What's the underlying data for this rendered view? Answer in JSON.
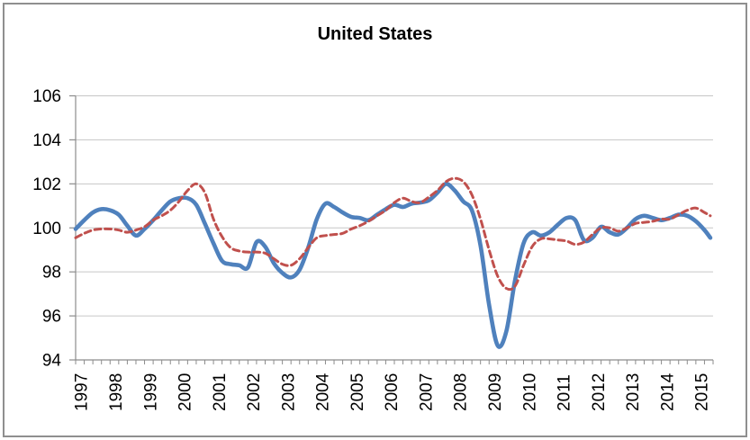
{
  "frame": {
    "border_color": "#8f8f8f",
    "background": "#ffffff"
  },
  "chart_data": {
    "type": "line",
    "title": "United States",
    "xlabel": "",
    "ylabel": "",
    "xlim": [
      1997,
      2015.5
    ],
    "ylim": [
      94,
      106
    ],
    "yticks": [
      94,
      96,
      98,
      100,
      102,
      104,
      106
    ],
    "xtick_years": [
      1997,
      1998,
      1999,
      2000,
      2001,
      2002,
      2003,
      2004,
      2005,
      2006,
      2007,
      2008,
      2009,
      2010,
      2011,
      2012,
      2013,
      2014,
      2015
    ],
    "minor_tick_interval_years": 0.25,
    "grid": true,
    "legend": "none",
    "grid_color": "#c6c6c6",
    "axis_color": "#8c8c8c",
    "text_color": "#000000",
    "x": [
      1997,
      1997.25,
      1997.5,
      1997.75,
      1998,
      1998.25,
      1998.5,
      1998.75,
      1999,
      1999.25,
      1999.5,
      1999.75,
      2000,
      2000.25,
      2000.5,
      2000.75,
      2001,
      2001.25,
      2001.5,
      2001.75,
      2002,
      2002.25,
      2002.5,
      2002.75,
      2003,
      2003.25,
      2003.5,
      2003.75,
      2004,
      2004.25,
      2004.5,
      2004.75,
      2005,
      2005.25,
      2005.5,
      2005.75,
      2006,
      2006.25,
      2006.5,
      2006.75,
      2007,
      2007.25,
      2007.5,
      2007.75,
      2008,
      2008.25,
      2008.5,
      2008.75,
      2009,
      2009.25,
      2009.5,
      2009.75,
      2010,
      2010.25,
      2010.5,
      2010.75,
      2011,
      2011.25,
      2011.5,
      2011.75,
      2012,
      2012.25,
      2012.5,
      2012.75,
      2013,
      2013.25,
      2013.5,
      2013.75,
      2014,
      2014.25,
      2014.5,
      2014.75,
      2015,
      2015.25,
      2015.42
    ],
    "series": [
      {
        "name": "series-1-solid-blue",
        "color": "#4F81BD",
        "dash": null,
        "width": 4.6,
        "values": [
          99.95,
          100.35,
          100.7,
          100.85,
          100.8,
          100.6,
          100.1,
          99.65,
          99.95,
          100.35,
          100.8,
          101.2,
          101.35,
          101.35,
          101.05,
          100.2,
          99.3,
          98.5,
          98.35,
          98.3,
          98.2,
          99.35,
          99.15,
          98.4,
          97.95,
          97.75,
          98.1,
          99.1,
          100.4,
          101.1,
          100.95,
          100.7,
          100.5,
          100.45,
          100.35,
          100.6,
          100.85,
          101.05,
          100.95,
          101.1,
          101.15,
          101.25,
          101.6,
          102.0,
          101.7,
          101.2,
          100.8,
          99.2,
          96.5,
          94.65,
          95.3,
          97.6,
          99.3,
          99.8,
          99.65,
          99.8,
          100.15,
          100.45,
          100.35,
          99.45,
          99.55,
          100.05,
          99.8,
          99.7,
          100.0,
          100.4,
          100.55,
          100.45,
          100.35,
          100.45,
          100.6,
          100.55,
          100.3,
          99.9,
          99.55
        ]
      },
      {
        "name": "series-2-dashed-red",
        "color": "#C0504D",
        "dash": "7 4.5",
        "width": 3,
        "values": [
          99.55,
          99.75,
          99.9,
          99.95,
          99.95,
          99.9,
          99.8,
          99.9,
          100.05,
          100.35,
          100.55,
          100.8,
          101.2,
          101.7,
          102.0,
          101.6,
          100.4,
          99.6,
          99.1,
          98.95,
          98.9,
          98.9,
          98.85,
          98.6,
          98.35,
          98.3,
          98.6,
          99.1,
          99.55,
          99.65,
          99.7,
          99.75,
          99.95,
          100.1,
          100.3,
          100.55,
          100.8,
          101.15,
          101.35,
          101.2,
          101.15,
          101.4,
          101.7,
          102.1,
          102.25,
          102.1,
          101.5,
          100.4,
          99.0,
          97.8,
          97.25,
          97.35,
          98.3,
          99.15,
          99.5,
          99.5,
          99.45,
          99.4,
          99.25,
          99.35,
          99.7,
          100.0,
          100.0,
          99.85,
          100.0,
          100.2,
          100.25,
          100.3,
          100.4,
          100.4,
          100.6,
          100.8,
          100.9,
          100.7,
          100.55
        ]
      }
    ]
  }
}
